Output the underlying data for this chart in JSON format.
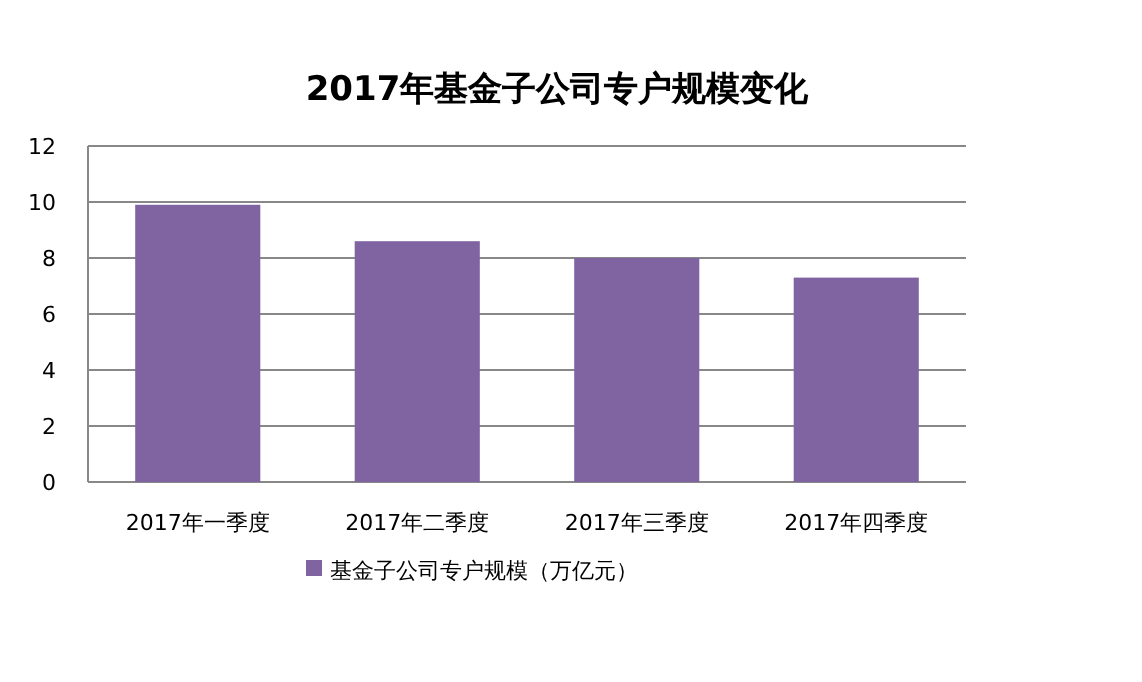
{
  "chart_data": {
    "type": "bar",
    "title": "2017年基金子公司专户规模变化",
    "categories": [
      "2017年一季度",
      "2017年二季度",
      "2017年三季度",
      "2017年四季度"
    ],
    "series": [
      {
        "name": "基金子公司专户规模（万亿元）",
        "color": "#8064a2",
        "values": [
          9.9,
          8.6,
          8.0,
          7.3
        ]
      }
    ],
    "ylim": [
      0,
      12
    ],
    "yticks": [
      0,
      2,
      4,
      6,
      8,
      10,
      12
    ],
    "grid": "y",
    "legend": "bottom"
  }
}
